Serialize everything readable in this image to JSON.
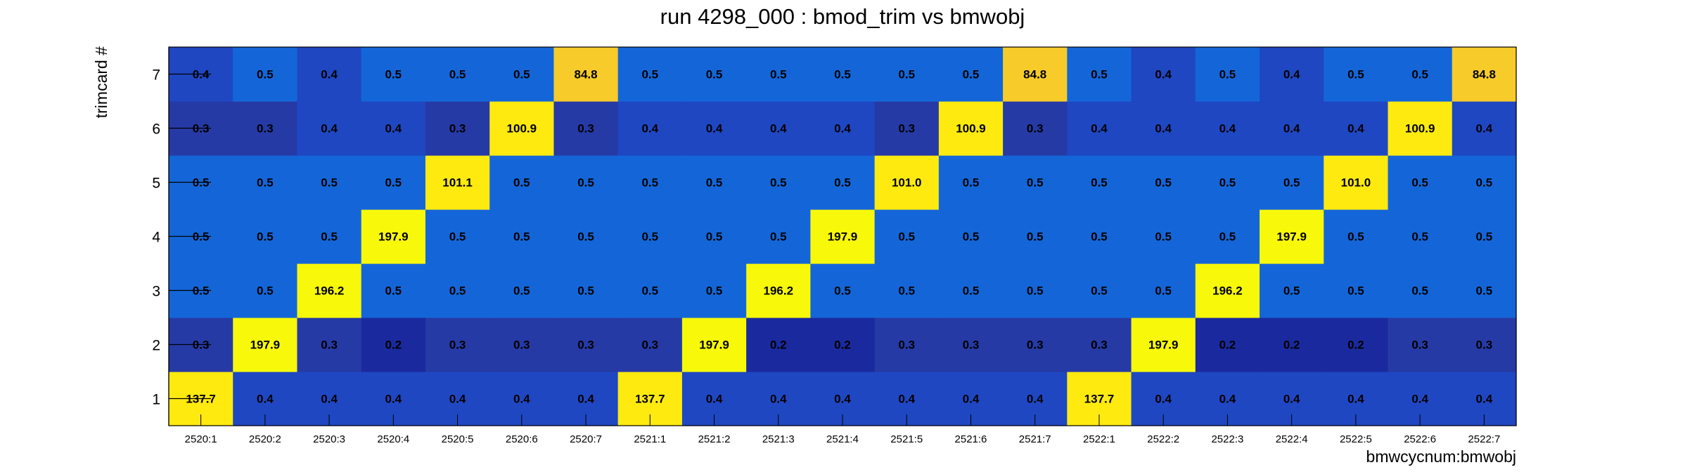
{
  "chart_data": {
    "type": "heatmap",
    "title": "run 4298_000 : bmod_trim vs bmwobj",
    "xlabel": "bmwcycnum:bmwobj",
    "ylabel": "trimcard #",
    "x_categories": [
      "2520:1",
      "2520:2",
      "2520:3",
      "2520:4",
      "2520:5",
      "2520:6",
      "2520:7",
      "2521:1",
      "2521:2",
      "2521:3",
      "2521:4",
      "2521:5",
      "2521:6",
      "2521:7",
      "2522:1",
      "2522:2",
      "2522:3",
      "2522:4",
      "2522:5",
      "2522:6",
      "2522:7"
    ],
    "y_categories": [
      "1",
      "2",
      "3",
      "4",
      "5",
      "6",
      "7"
    ],
    "values": [
      [
        "137.7",
        "0.4",
        "0.4",
        "0.4",
        "0.4",
        "0.4",
        "0.4",
        "137.7",
        "0.4",
        "0.4",
        "0.4",
        "0.4",
        "0.4",
        "0.4",
        "137.7",
        "0.4",
        "0.4",
        "0.4",
        "0.4",
        "0.4",
        "0.4"
      ],
      [
        "0.3",
        "197.9",
        "0.3",
        "0.2",
        "0.3",
        "0.3",
        "0.3",
        "0.3",
        "197.9",
        "0.2",
        "0.2",
        "0.3",
        "0.3",
        "0.3",
        "0.3",
        "197.9",
        "0.2",
        "0.2",
        "0.2",
        "0.3",
        "0.3"
      ],
      [
        "0.5",
        "0.5",
        "196.2",
        "0.5",
        "0.5",
        "0.5",
        "0.5",
        "0.5",
        "0.5",
        "196.2",
        "0.5",
        "0.5",
        "0.5",
        "0.5",
        "0.5",
        "0.5",
        "196.2",
        "0.5",
        "0.5",
        "0.5",
        "0.5"
      ],
      [
        "0.5",
        "0.5",
        "0.5",
        "197.9",
        "0.5",
        "0.5",
        "0.5",
        "0.5",
        "0.5",
        "0.5",
        "197.9",
        "0.5",
        "0.5",
        "0.5",
        "0.5",
        "0.5",
        "0.5",
        "197.9",
        "0.5",
        "0.5",
        "0.5"
      ],
      [
        "0.5",
        "0.5",
        "0.5",
        "0.5",
        "101.1",
        "0.5",
        "0.5",
        "0.5",
        "0.5",
        "0.5",
        "0.5",
        "101.0",
        "0.5",
        "0.5",
        "0.5",
        "0.5",
        "0.5",
        "0.5",
        "101.0",
        "0.5",
        "0.5"
      ],
      [
        "0.3",
        "0.3",
        "0.4",
        "0.4",
        "0.3",
        "100.9",
        "0.3",
        "0.4",
        "0.4",
        "0.4",
        "0.4",
        "0.3",
        "100.9",
        "0.3",
        "0.4",
        "0.4",
        "0.4",
        "0.4",
        "0.4",
        "100.9",
        "0.4"
      ],
      [
        "0.4",
        "0.5",
        "0.4",
        "0.5",
        "0.5",
        "0.5",
        "84.8",
        "0.5",
        "0.5",
        "0.5",
        "0.5",
        "0.5",
        "0.5",
        "84.8",
        "0.5",
        "0.4",
        "0.5",
        "0.4",
        "0.5",
        "0.5",
        "84.8"
      ]
    ],
    "colors": {
      "zero": "#1a2a9e",
      "tiny": "#263aa6",
      "low": "#1f47c2",
      "base": "#1466d8",
      "mid": "#f7cb2a",
      "high": "#ffea10",
      "max": "#f8f80a"
    },
    "grid": false,
    "legend": "none"
  }
}
